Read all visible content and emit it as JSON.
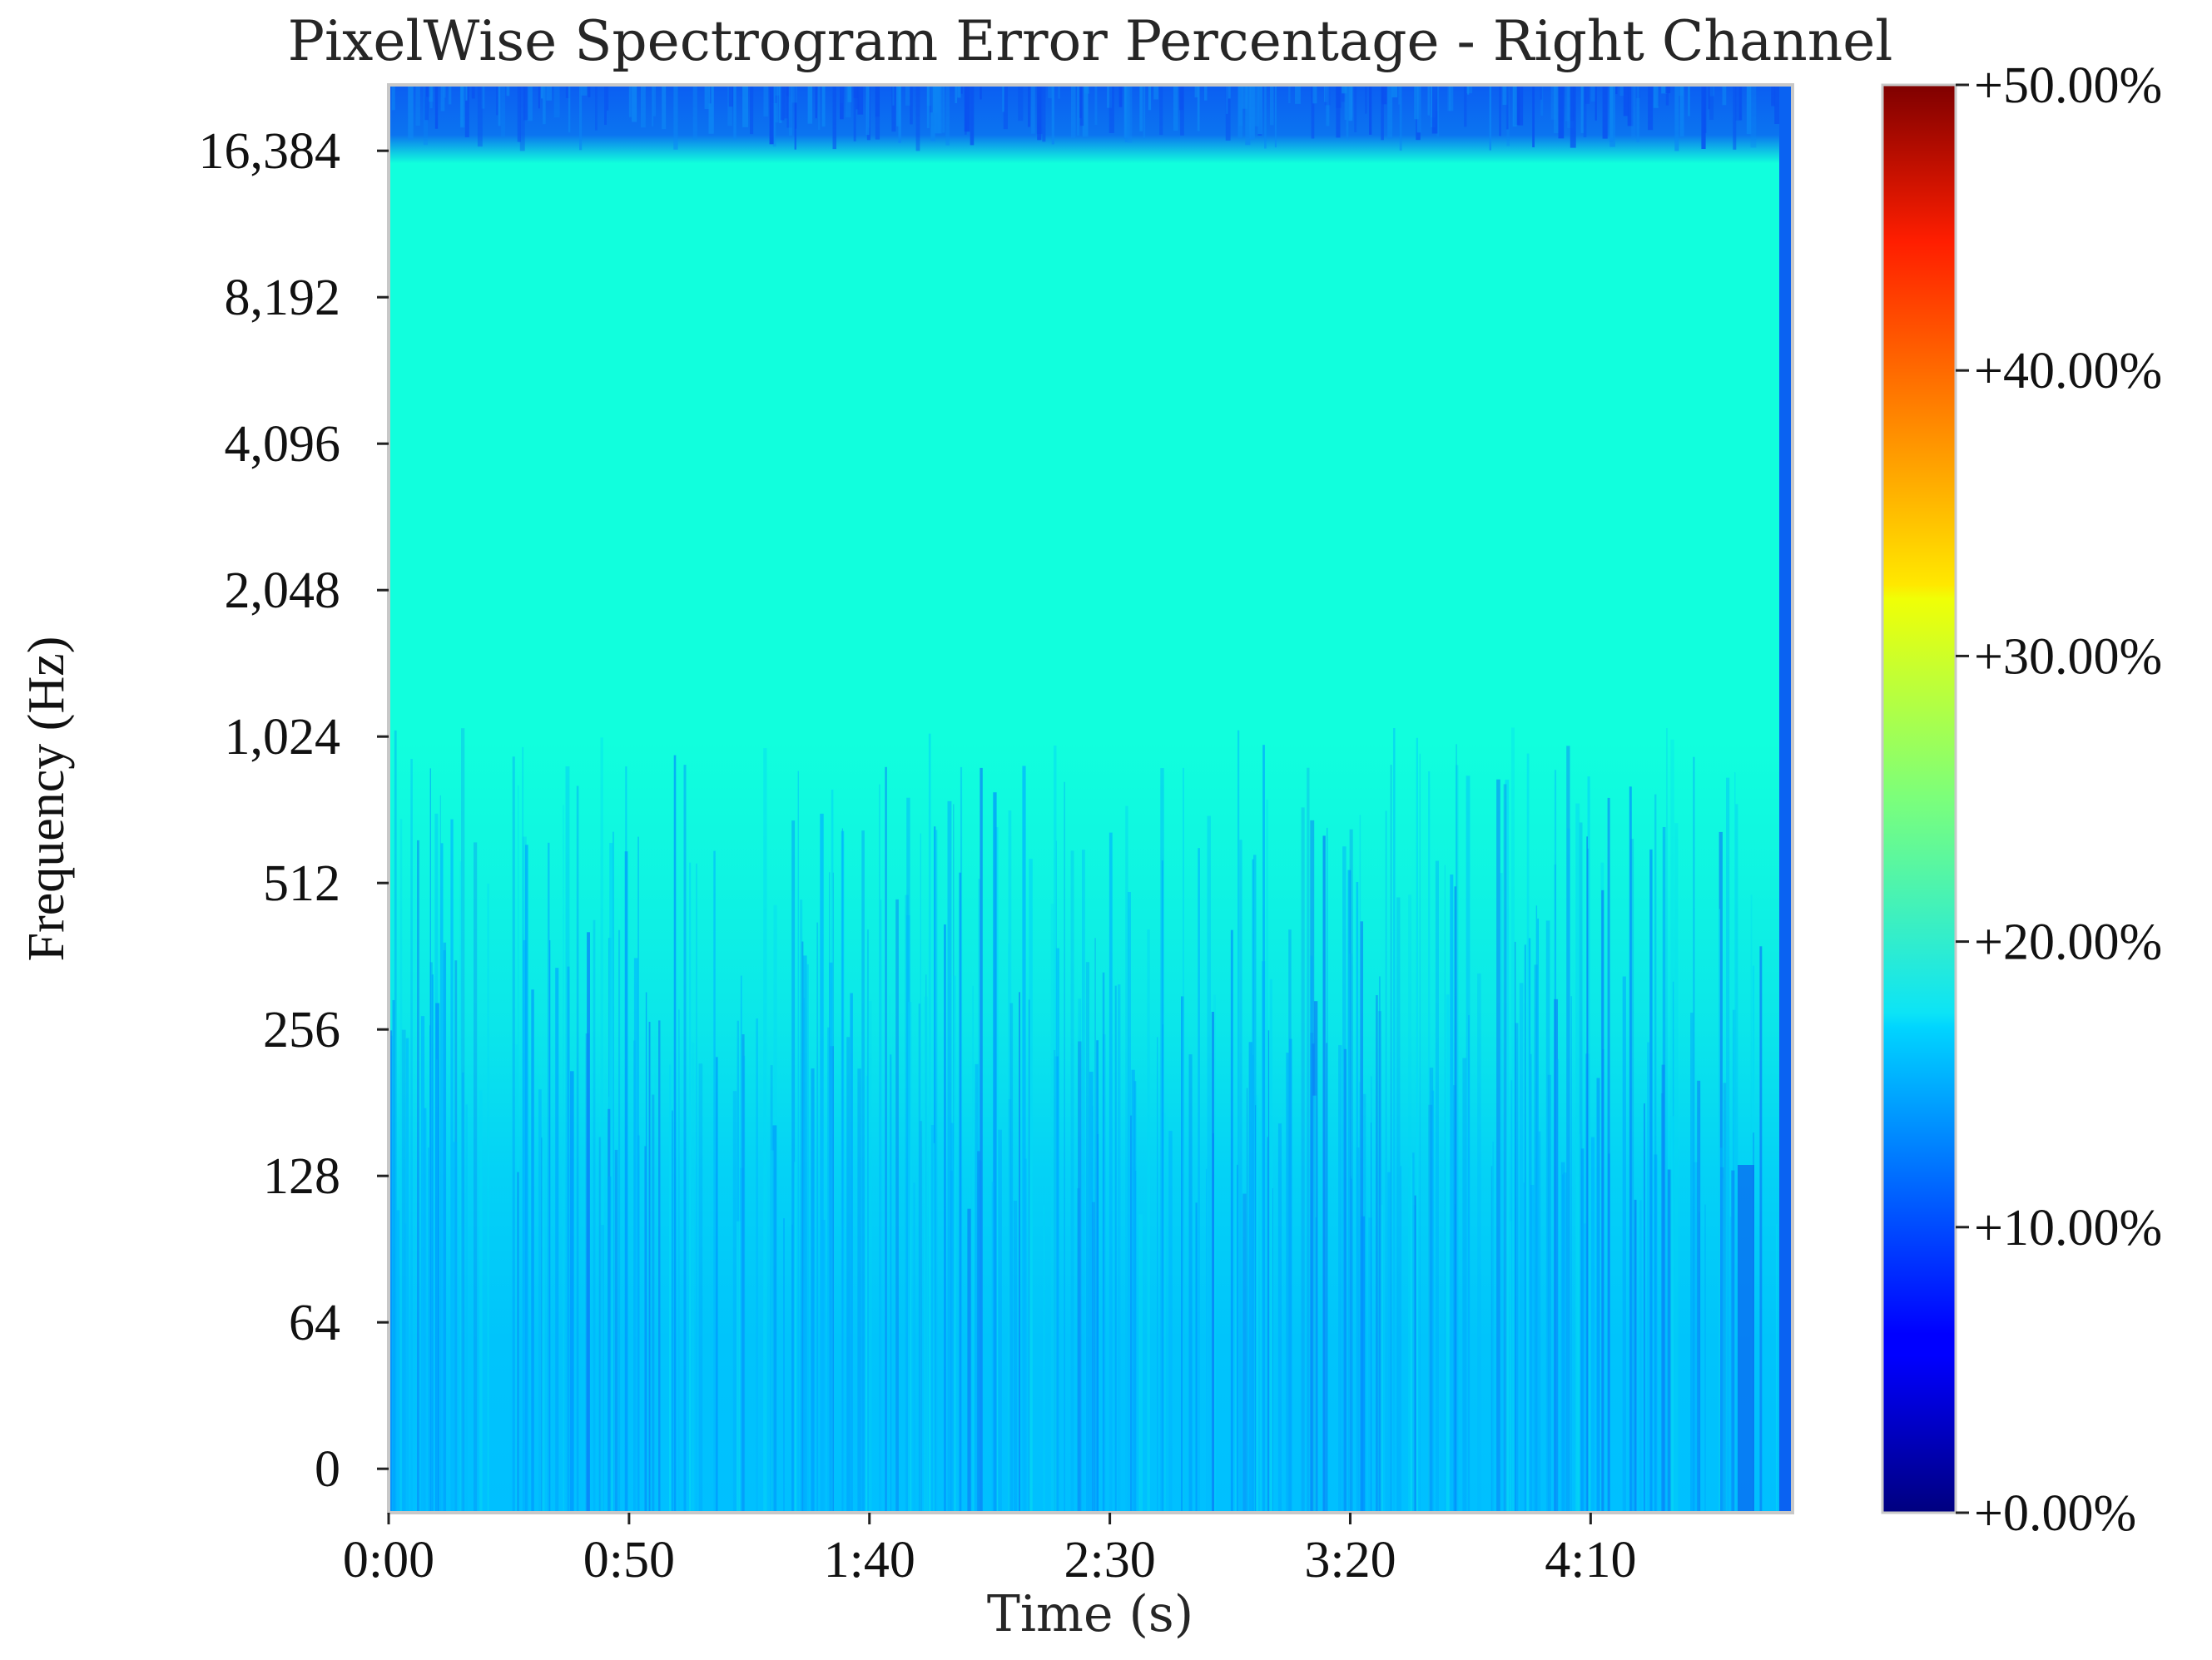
{
  "chart_data": {
    "type": "heatmap",
    "title": "PixelWise Spectrogram Error Percentage - Right Channel",
    "xlabel": "Time (s)",
    "ylabel": "Frequency (Hz)",
    "x_ticks": [
      "0:00",
      "0:50",
      "1:40",
      "2:30",
      "3:20",
      "4:10"
    ],
    "x_tick_values": [
      0,
      50,
      100,
      150,
      200,
      250
    ],
    "xlim": [
      0,
      292
    ],
    "y_scale": "log2",
    "y_ticks": [
      "0",
      "64",
      "128",
      "256",
      "512",
      "1,024",
      "2,048",
      "4,096",
      "8,192",
      "16,384"
    ],
    "ylim_octaves_from_32": [
      -0.3,
      9.45
    ],
    "colorbar": {
      "colormap": "jet",
      "range": [
        0,
        50
      ],
      "ticks": [
        "+0.00%",
        "+10.00%",
        "+20.00%",
        "+30.00%",
        "+40.00%",
        "+50.00%"
      ],
      "tick_values": [
        0,
        10,
        20,
        30,
        40,
        50
      ]
    },
    "colors": {
      "dominant": "#11ffdd",
      "low_freq_band": "#00c8ff",
      "top_band": "#0a5cf5",
      "frame": "#c8c8c8"
    },
    "summary_values": {
      "error_pct_above_2048hz": 20,
      "error_pct_below_256hz": 15,
      "error_pct_top_band": 10
    }
  }
}
